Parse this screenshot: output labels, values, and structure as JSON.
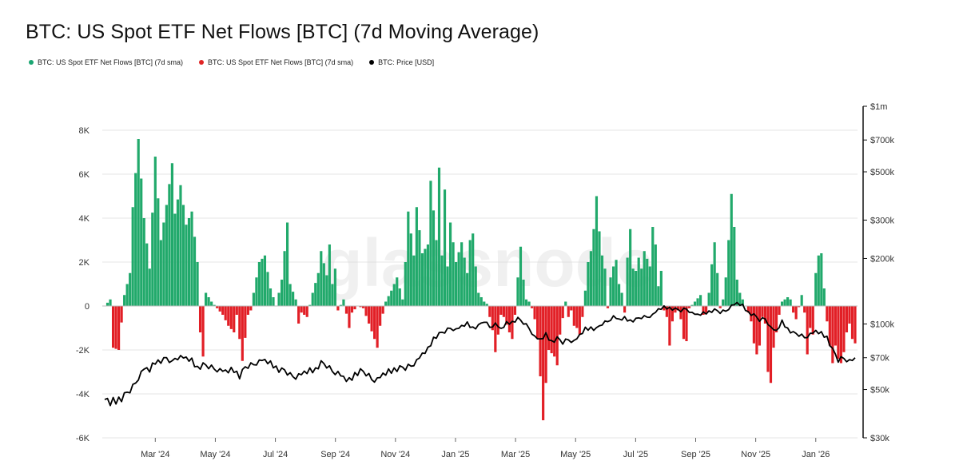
{
  "chart_data": {
    "type": "bar",
    "title": "BTC: US Spot ETF Net Flows [BTC] (7d Moving Average)",
    "watermark": "glassnode",
    "legend": [
      {
        "label": "BTC: US Spot ETF Net Flows [BTC] (7d sma)",
        "color": "#1aa672"
      },
      {
        "label": "BTC: US Spot ETF Net Flows [BTC] (7d sma)",
        "color": "#e02424"
      },
      {
        "label": "BTC: Price [USD]",
        "color": "#000000"
      }
    ],
    "colors": {
      "positive": "#21a96b",
      "negative": "#e21f26",
      "price": "#000000"
    },
    "x_ticks": [
      "Mar '24",
      "May '24",
      "Jul '24",
      "Sep '24",
      "Nov '24",
      "Jan '25",
      "Mar '25",
      "May '25",
      "Jul '25",
      "Sep '25",
      "Nov '25",
      "Jan '26"
    ],
    "y_left": {
      "ticks": [
        8000,
        6000,
        4000,
        2000,
        0,
        -2000,
        -4000,
        -6000
      ],
      "labels": [
        "8K",
        "6K",
        "4K",
        "2K",
        "0",
        "-2K",
        "-4K",
        "-6K"
      ],
      "ylim": [
        -6000,
        8000
      ]
    },
    "y_right": {
      "scale": "log",
      "ticks": [
        1000000,
        700000,
        500000,
        300000,
        200000,
        100000,
        70000,
        50000,
        30000
      ],
      "labels": [
        "$1m",
        "$700k",
        "$500k",
        "$300k",
        "$200k",
        "$100k",
        "$70k",
        "$50k",
        "$30k"
      ],
      "ylim": [
        30000,
        1000000
      ]
    },
    "flow_keyframes": [
      [
        0,
        0
      ],
      [
        2,
        300
      ],
      [
        3,
        -1900
      ],
      [
        5,
        -2000
      ],
      [
        7,
        500
      ],
      [
        9,
        1500
      ],
      [
        10,
        4500
      ],
      [
        12,
        7600
      ],
      [
        14,
        4000
      ],
      [
        16,
        1700
      ],
      [
        18,
        6800
      ],
      [
        20,
        3000
      ],
      [
        22,
        4600
      ],
      [
        24,
        6500
      ],
      [
        25,
        4200
      ],
      [
        27,
        5500
      ],
      [
        29,
        3700
      ],
      [
        31,
        4300
      ],
      [
        33,
        2000
      ],
      [
        34,
        -1200
      ],
      [
        35,
        -2300
      ],
      [
        36,
        600
      ],
      [
        38,
        200
      ],
      [
        40,
        -100
      ],
      [
        42,
        -400
      ],
      [
        44,
        -900
      ],
      [
        46,
        -1200
      ],
      [
        47,
        -400
      ],
      [
        48,
        -1500
      ],
      [
        49,
        -2500
      ],
      [
        51,
        -400
      ],
      [
        52,
        -200
      ],
      [
        53,
        600
      ],
      [
        55,
        2000
      ],
      [
        57,
        2300
      ],
      [
        59,
        800
      ],
      [
        61,
        0
      ],
      [
        63,
        1200
      ],
      [
        65,
        3800
      ],
      [
        66,
        1000
      ],
      [
        68,
        300
      ],
      [
        69,
        -800
      ],
      [
        70,
        -300
      ],
      [
        72,
        -500
      ],
      [
        74,
        600
      ],
      [
        76,
        1500
      ],
      [
        77,
        2500
      ],
      [
        79,
        1400
      ],
      [
        80,
        2800
      ],
      [
        81,
        1000
      ],
      [
        82,
        1700
      ],
      [
        83,
        -200
      ],
      [
        85,
        300
      ],
      [
        87,
        -1000
      ],
      [
        88,
        -300
      ],
      [
        90,
        0
      ],
      [
        92,
        -100
      ],
      [
        94,
        -800
      ],
      [
        96,
        -1500
      ],
      [
        97,
        -1900
      ],
      [
        98,
        -900
      ],
      [
        100,
        200
      ],
      [
        102,
        700
      ],
      [
        104,
        1300
      ],
      [
        106,
        300
      ],
      [
        107,
        2000
      ],
      [
        108,
        4300
      ],
      [
        110,
        2300
      ],
      [
        111,
        4500
      ],
      [
        113,
        2400
      ],
      [
        115,
        2800
      ],
      [
        116,
        5700
      ],
      [
        118,
        3000
      ],
      [
        119,
        6300
      ],
      [
        120,
        2300
      ],
      [
        121,
        5300
      ],
      [
        122,
        1800
      ],
      [
        123,
        3800
      ],
      [
        125,
        2000
      ],
      [
        127,
        2900
      ],
      [
        129,
        1500
      ],
      [
        130,
        3000
      ],
      [
        131,
        3300
      ],
      [
        132,
        1800
      ],
      [
        133,
        600
      ],
      [
        135,
        200
      ],
      [
        136,
        100
      ],
      [
        138,
        -1100
      ],
      [
        139,
        -2100
      ],
      [
        140,
        -1300
      ],
      [
        141,
        -400
      ],
      [
        142,
        -500
      ],
      [
        144,
        -1200
      ],
      [
        145,
        -1500
      ],
      [
        146,
        -400
      ],
      [
        147,
        1300
      ],
      [
        148,
        2700
      ],
      [
        149,
        1200
      ],
      [
        150,
        300
      ],
      [
        151,
        200
      ],
      [
        152,
        -100
      ],
      [
        153,
        -600
      ],
      [
        154,
        -1500
      ],
      [
        155,
        -3200
      ],
      [
        156,
        -5200
      ],
      [
        157,
        -3500
      ],
      [
        158,
        -2000
      ],
      [
        160,
        -2300
      ],
      [
        161,
        -2700
      ],
      [
        162,
        -1300
      ],
      [
        164,
        200
      ],
      [
        165,
        -500
      ],
      [
        166,
        -200
      ],
      [
        167,
        -900
      ],
      [
        168,
        -1000
      ],
      [
        169,
        -1300
      ],
      [
        170,
        -500
      ],
      [
        171,
        700
      ],
      [
        172,
        2000
      ],
      [
        173,
        2500
      ],
      [
        174,
        3500
      ],
      [
        175,
        5000
      ],
      [
        176,
        3400
      ],
      [
        177,
        2300
      ],
      [
        178,
        1700
      ],
      [
        179,
        -100
      ],
      [
        180,
        1300
      ],
      [
        181,
        1800
      ],
      [
        182,
        2100
      ],
      [
        183,
        1000
      ],
      [
        184,
        600
      ],
      [
        185,
        -300
      ],
      [
        186,
        2200
      ],
      [
        187,
        3500
      ],
      [
        188,
        1700
      ],
      [
        189,
        1600
      ],
      [
        190,
        2200
      ],
      [
        191,
        1700
      ],
      [
        192,
        2500
      ],
      [
        194,
        1800
      ],
      [
        195,
        3600
      ],
      [
        196,
        2800
      ],
      [
        197,
        900
      ],
      [
        198,
        1600
      ],
      [
        199,
        -200
      ],
      [
        200,
        -500
      ],
      [
        201,
        -1800
      ],
      [
        202,
        -700
      ],
      [
        203,
        -300
      ],
      [
        204,
        -200
      ],
      [
        205,
        -600
      ],
      [
        206,
        -1500
      ],
      [
        207,
        -1600
      ],
      [
        208,
        -100
      ],
      [
        210,
        200
      ],
      [
        212,
        500
      ],
      [
        213,
        -400
      ],
      [
        214,
        -300
      ],
      [
        215,
        600
      ],
      [
        216,
        1900
      ],
      [
        217,
        2900
      ],
      [
        218,
        1500
      ],
      [
        219,
        -100
      ],
      [
        220,
        300
      ],
      [
        221,
        1300
      ],
      [
        222,
        3000
      ],
      [
        223,
        5100
      ],
      [
        224,
        3600
      ],
      [
        225,
        1200
      ],
      [
        226,
        600
      ],
      [
        227,
        300
      ],
      [
        228,
        0
      ],
      [
        229,
        -300
      ],
      [
        230,
        -700
      ],
      [
        231,
        -1700
      ],
      [
        232,
        -2200
      ],
      [
        233,
        -1800
      ],
      [
        234,
        -500
      ],
      [
        235,
        -800
      ],
      [
        236,
        -3000
      ],
      [
        237,
        -3500
      ],
      [
        238,
        -1900
      ],
      [
        239,
        -1200
      ],
      [
        240,
        -400
      ],
      [
        241,
        200
      ],
      [
        243,
        400
      ],
      [
        244,
        300
      ],
      [
        245,
        -300
      ],
      [
        246,
        -600
      ],
      [
        248,
        500
      ],
      [
        249,
        -300
      ],
      [
        250,
        -2200
      ],
      [
        251,
        -1000
      ],
      [
        252,
        -1300
      ],
      [
        253,
        1500
      ],
      [
        254,
        2300
      ],
      [
        255,
        2400
      ],
      [
        256,
        800
      ],
      [
        257,
        -700
      ],
      [
        258,
        -1800
      ],
      [
        259,
        -2600
      ],
      [
        260,
        -1800
      ],
      [
        261,
        -2400
      ],
      [
        262,
        -2600
      ],
      [
        263,
        -2100
      ],
      [
        264,
        -1200
      ],
      [
        265,
        -800
      ],
      [
        266,
        -1500
      ],
      [
        267,
        -1700
      ]
    ],
    "price_keyframes": [
      [
        0,
        45000
      ],
      [
        2,
        43000
      ],
      [
        4,
        44500
      ],
      [
        6,
        46000
      ],
      [
        8,
        48000
      ],
      [
        10,
        51000
      ],
      [
        12,
        57000
      ],
      [
        14,
        62000
      ],
      [
        16,
        61000
      ],
      [
        18,
        67000
      ],
      [
        20,
        68000
      ],
      [
        22,
        69500
      ],
      [
        24,
        66000
      ],
      [
        25,
        70000
      ],
      [
        27,
        70500
      ],
      [
        29,
        69000
      ],
      [
        31,
        67500
      ],
      [
        33,
        63000
      ],
      [
        35,
        65000
      ],
      [
        37,
        63500
      ],
      [
        40,
        62000
      ],
      [
        43,
        60000
      ],
      [
        46,
        61500
      ],
      [
        48,
        58000
      ],
      [
        50,
        63000
      ],
      [
        52,
        64500
      ],
      [
        54,
        66500
      ],
      [
        56,
        68000
      ],
      [
        58,
        66500
      ],
      [
        60,
        64500
      ],
      [
        62,
        62000
      ],
      [
        64,
        61000
      ],
      [
        66,
        58000
      ],
      [
        68,
        57500
      ],
      [
        70,
        58500
      ],
      [
        72,
        60000
      ],
      [
        75,
        62000
      ],
      [
        77,
        66500
      ],
      [
        79,
        64000
      ],
      [
        81,
        61000
      ],
      [
        83,
        59500
      ],
      [
        85,
        56000
      ],
      [
        87,
        54500
      ],
      [
        89,
        59000
      ],
      [
        91,
        61000
      ],
      [
        93,
        59000
      ],
      [
        95,
        56000
      ],
      [
        97,
        55500
      ],
      [
        99,
        58000
      ],
      [
        101,
        60000
      ],
      [
        103,
        62000
      ],
      [
        105,
        63000
      ],
      [
        107,
        62500
      ],
      [
        109,
        64500
      ],
      [
        111,
        67500
      ],
      [
        113,
        72000
      ],
      [
        115,
        76000
      ],
      [
        117,
        86000
      ],
      [
        119,
        90000
      ],
      [
        121,
        92000
      ],
      [
        123,
        96000
      ],
      [
        125,
        94000
      ],
      [
        127,
        97000
      ],
      [
        129,
        100000
      ],
      [
        131,
        96000
      ],
      [
        133,
        98000
      ],
      [
        135,
        103000
      ],
      [
        137,
        97000
      ],
      [
        139,
        100000
      ],
      [
        141,
        94000
      ],
      [
        143,
        100500
      ],
      [
        145,
        102000
      ],
      [
        147,
        106000
      ],
      [
        149,
        101000
      ],
      [
        151,
        96000
      ],
      [
        153,
        87000
      ],
      [
        155,
        84000
      ],
      [
        157,
        89000
      ],
      [
        159,
        83000
      ],
      [
        161,
        86000
      ],
      [
        163,
        82000
      ],
      [
        165,
        85000
      ],
      [
        167,
        83000
      ],
      [
        169,
        88000
      ],
      [
        171,
        94500
      ],
      [
        173,
        96000
      ],
      [
        175,
        95000
      ],
      [
        177,
        100000
      ],
      [
        179,
        103000
      ],
      [
        181,
        108000
      ],
      [
        183,
        104000
      ],
      [
        185,
        106000
      ],
      [
        187,
        103500
      ],
      [
        189,
        105000
      ],
      [
        191,
        107000
      ],
      [
        193,
        108000
      ],
      [
        195,
        110000
      ],
      [
        197,
        116000
      ],
      [
        199,
        119000
      ],
      [
        201,
        118500
      ],
      [
        203,
        117000
      ],
      [
        205,
        115000
      ],
      [
        207,
        117500
      ],
      [
        209,
        112000
      ],
      [
        211,
        109500
      ],
      [
        213,
        111500
      ],
      [
        215,
        114000
      ],
      [
        217,
        116000
      ],
      [
        219,
        113000
      ],
      [
        221,
        115000
      ],
      [
        223,
        121000
      ],
      [
        225,
        124000
      ],
      [
        227,
        121000
      ],
      [
        229,
        113000
      ],
      [
        231,
        110000
      ],
      [
        233,
        104000
      ],
      [
        235,
        106000
      ],
      [
        237,
        96000
      ],
      [
        239,
        92000
      ],
      [
        241,
        102000
      ],
      [
        243,
        95000
      ],
      [
        245,
        91000
      ],
      [
        247,
        89000
      ],
      [
        249,
        87000
      ],
      [
        251,
        89500
      ],
      [
        253,
        92000
      ],
      [
        255,
        90000
      ],
      [
        257,
        87000
      ],
      [
        259,
        76000
      ],
      [
        261,
        68000
      ],
      [
        263,
        70000
      ],
      [
        265,
        67500
      ],
      [
        267,
        68500
      ]
    ],
    "price_wiggle_usd": [
      0,
      1500,
      -800,
      2200,
      -1600,
      900,
      -2000,
      1300,
      600,
      -1200,
      1800,
      -500,
      -1700,
      1100
    ]
  }
}
